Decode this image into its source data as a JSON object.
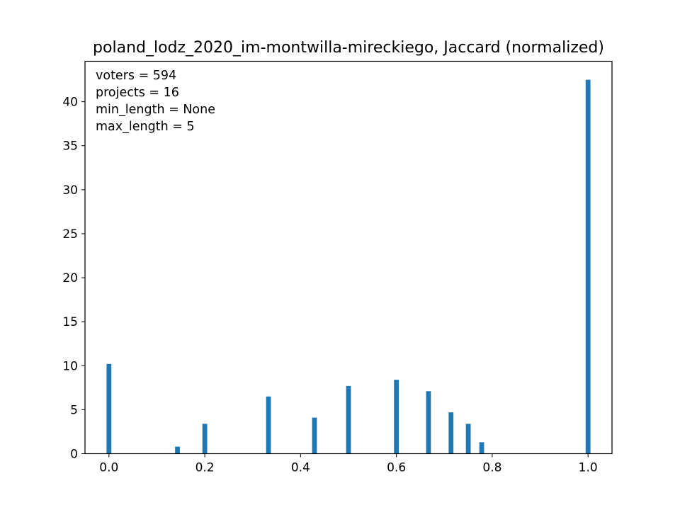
{
  "chart_data": {
    "type": "bar",
    "title": "poland_lodz_2020_im-montwilla-mireckiego, Jaccard (normalized)",
    "xlabel": "",
    "ylabel": "",
    "xlim": [
      -0.05,
      1.05
    ],
    "ylim": [
      0,
      44.6
    ],
    "grid": false,
    "bar_color": "#1f77b4",
    "bar_width": 0.01,
    "x_ticks": [
      0.0,
      0.2,
      0.4,
      0.6,
      0.8,
      1.0
    ],
    "x_tick_labels": [
      "0.0",
      "0.2",
      "0.4",
      "0.6",
      "0.8",
      "1.0"
    ],
    "y_ticks": [
      0,
      5,
      10,
      15,
      20,
      25,
      30,
      35,
      40
    ],
    "y_tick_labels": [
      "0",
      "5",
      "10",
      "15",
      "20",
      "25",
      "30",
      "35",
      "40"
    ],
    "x": [
      0.0,
      0.143,
      0.2,
      0.333,
      0.429,
      0.5,
      0.6,
      0.667,
      0.714,
      0.75,
      0.778,
      1.0
    ],
    "values": [
      10.2,
      0.8,
      3.4,
      6.5,
      4.1,
      7.7,
      8.4,
      7.1,
      4.7,
      3.4,
      1.3,
      42.5
    ],
    "annotations": [
      "voters = 594",
      "projects = 16",
      "min_length = None",
      "max_length = 5"
    ]
  }
}
